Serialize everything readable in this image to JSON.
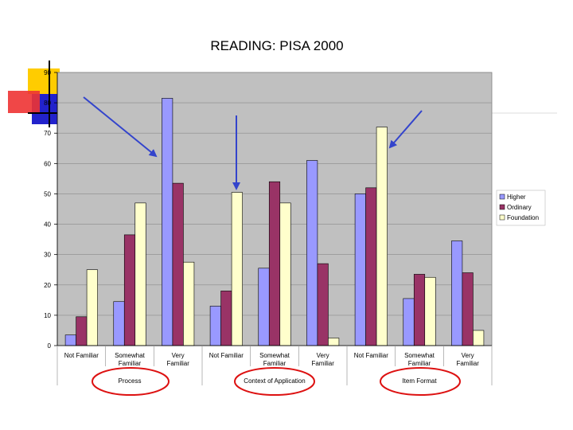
{
  "slide": {
    "title": "READING: PISA 2000"
  },
  "colors": {
    "Higher": "#9999ff",
    "Ordinary": "#993366",
    "Foundation": "#ffffcc",
    "plot_area": "#c0c0c0",
    "arrows": "#3344cc",
    "ellipses": "#dd1111",
    "deco_yellow": "#ffcc00",
    "deco_red": "#ee3333",
    "deco_blue": "#2222cc"
  },
  "chart_data": {
    "type": "bar",
    "title": "",
    "xlabel": "",
    "ylabel": "",
    "ylim": [
      0,
      90
    ],
    "yticks": [
      0,
      10,
      20,
      30,
      40,
      50,
      60,
      70,
      80,
      90
    ],
    "grid": true,
    "legend_position": "right",
    "categories": [
      "Not Familiar",
      "Somewhat Familiar",
      "Very Familiar",
      "Not Familiar",
      "Somewhat Familiar",
      "Very Familiar",
      "Not Familiar",
      "Somewhat Familiar",
      "Very Familiar"
    ],
    "groups": [
      {
        "label": "Process",
        "span": 3
      },
      {
        "label": "Context of Application",
        "span": 3
      },
      {
        "label": "Item Format",
        "span": 3
      }
    ],
    "series": [
      {
        "name": "Higher",
        "values": [
          3.5,
          14.5,
          81.5,
          13,
          25.5,
          61,
          50,
          15.5,
          34.5
        ]
      },
      {
        "name": "Ordinary",
        "values": [
          9.5,
          36.5,
          53.5,
          18,
          54,
          27,
          52,
          23.5,
          24
        ]
      },
      {
        "name": "Foundation",
        "values": [
          25,
          47,
          27.5,
          50.5,
          47,
          2.5,
          72,
          22.5,
          5
        ]
      }
    ]
  }
}
